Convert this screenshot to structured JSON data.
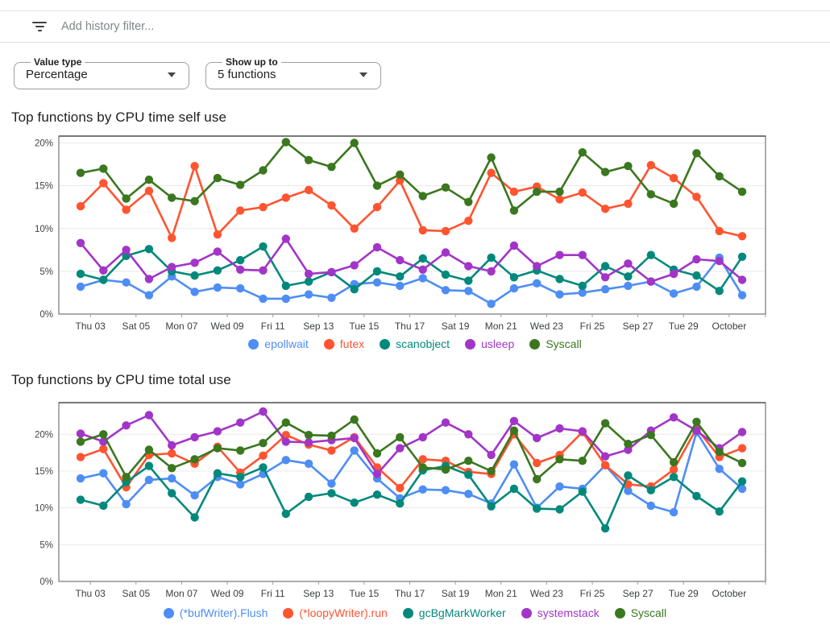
{
  "filter_bar": {
    "icon": "filter-list-icon",
    "placeholder": "Add history filter..."
  },
  "controls": {
    "value_type": {
      "label": "Value type",
      "value": "Percentage"
    },
    "show_up_to": {
      "label": "Show up to",
      "value": "5 functions"
    }
  },
  "palette": {
    "blue": "#4e8df5",
    "orange": "#ff5430",
    "teal": "#00897b",
    "purple": "#a235c8",
    "green": "#3a771e",
    "grid": "#e8e8e8",
    "axis": "#757575",
    "tick_label": "#3c4043",
    "y_label": "#424242"
  },
  "chart_data": [
    {
      "type": "line",
      "title": "Top functions by CPU time self use",
      "xlabel": "",
      "ylabel": "",
      "grid": true,
      "legend_position": "bottom",
      "ylim": [
        0,
        20.8
      ],
      "yticks": [
        {
          "v": 0,
          "label": "0%"
        },
        {
          "v": 5,
          "label": "5%"
        },
        {
          "v": 10,
          "label": "10%"
        },
        {
          "v": 15,
          "label": "15%"
        },
        {
          "v": 20,
          "label": "20%"
        }
      ],
      "x_tick_labels": [
        "Thu 03",
        "Sat 05",
        "Mon 07",
        "Wed 09",
        "Fri 11",
        "Sep 13",
        "Tue 15",
        "Thu 17",
        "Sat 19",
        "Mon 21",
        "Wed 23",
        "Fri 25",
        "Sep 27",
        "Tue 29",
        "October"
      ],
      "series": [
        {
          "name": "epollwait",
          "color": "#4e8df5",
          "values": [
            3.2,
            4.0,
            3.7,
            2.2,
            4.4,
            2.6,
            3.1,
            3.0,
            1.8,
            1.8,
            2.3,
            1.9,
            3.5,
            3.7,
            3.3,
            4.2,
            2.8,
            2.7,
            1.2,
            3.0,
            3.6,
            2.3,
            2.5,
            2.9,
            3.3,
            3.8,
            2.4,
            3.2,
            6.6,
            2.2
          ]
        },
        {
          "name": "futex",
          "color": "#ff5430",
          "values": [
            12.6,
            15.3,
            12.2,
            14.4,
            8.9,
            17.3,
            9.3,
            12.1,
            12.5,
            13.6,
            14.5,
            12.7,
            10.0,
            12.5,
            15.6,
            9.8,
            9.7,
            10.9,
            16.5,
            14.3,
            14.9,
            13.4,
            14.2,
            12.3,
            12.9,
            17.4,
            15.9,
            13.7,
            9.7,
            9.1
          ]
        },
        {
          "name": "scanobject",
          "color": "#00897b",
          "values": [
            4.7,
            4.0,
            6.8,
            7.6,
            5.0,
            4.5,
            5.1,
            6.3,
            7.9,
            3.3,
            3.8,
            4.9,
            2.9,
            5.0,
            4.4,
            6.5,
            4.6,
            3.9,
            6.6,
            4.3,
            5.1,
            4.1,
            3.3,
            5.6,
            4.4,
            6.9,
            5.2,
            4.5,
            2.7,
            6.7
          ]
        },
        {
          "name": "usleep",
          "color": "#a235c8",
          "values": [
            8.3,
            5.1,
            7.5,
            4.1,
            5.5,
            6.0,
            7.3,
            5.2,
            5.1,
            8.8,
            4.7,
            4.9,
            5.7,
            7.8,
            6.3,
            5.2,
            7.2,
            5.6,
            5.0,
            8.0,
            5.6,
            6.9,
            6.9,
            4.3,
            5.9,
            3.8,
            4.7,
            6.4,
            6.2,
            4.0
          ]
        },
        {
          "name": "Syscall",
          "color": "#3a771e",
          "values": [
            16.5,
            17.0,
            13.5,
            15.7,
            13.6,
            13.2,
            15.9,
            15.1,
            16.8,
            20.1,
            18.0,
            17.2,
            20.0,
            15.0,
            16.3,
            13.8,
            14.8,
            13.1,
            18.3,
            12.1,
            14.3,
            14.3,
            18.9,
            16.6,
            17.3,
            14.0,
            12.9,
            18.8,
            16.1,
            14.3
          ]
        }
      ]
    },
    {
      "type": "line",
      "title": "Top functions by CPU time total use",
      "xlabel": "",
      "ylabel": "",
      "grid": true,
      "legend_position": "bottom",
      "ylim": [
        0,
        24.3
      ],
      "yticks": [
        {
          "v": 0,
          "label": "0%"
        },
        {
          "v": 5,
          "label": "5%"
        },
        {
          "v": 10,
          "label": "10%"
        },
        {
          "v": 15,
          "label": "15%"
        },
        {
          "v": 20,
          "label": "20%"
        }
      ],
      "x_tick_labels": [
        "Thu 03",
        "Sat 05",
        "Mon 07",
        "Wed 09",
        "Fri 11",
        "Sep 13",
        "Tue 15",
        "Thu 17",
        "Sat 19",
        "Mon 21",
        "Wed 23",
        "Fri 25",
        "Sep 27",
        "Tue 29",
        "October"
      ],
      "series": [
        {
          "name": "(*bufWriter).Flush",
          "color": "#4e8df5",
          "values": [
            14.0,
            14.7,
            10.5,
            13.8,
            14.0,
            11.7,
            14.2,
            13.2,
            14.6,
            16.5,
            16.0,
            13.3,
            17.8,
            14.0,
            11.3,
            12.5,
            12.4,
            11.9,
            10.6,
            15.9,
            10.0,
            12.9,
            12.6,
            15.8,
            12.3,
            10.3,
            9.4,
            20.3,
            15.3,
            12.6
          ]
        },
        {
          "name": "(*loopyWriter).run",
          "color": "#ff5430",
          "values": [
            16.9,
            18.0,
            12.8,
            17.2,
            17.4,
            16.0,
            18.3,
            14.8,
            17.1,
            19.9,
            18.6,
            17.8,
            19.6,
            15.5,
            12.7,
            16.6,
            16.4,
            14.9,
            14.6,
            20.0,
            16.1,
            17.2,
            20.3,
            15.8,
            13.2,
            12.9,
            15.2,
            20.8,
            16.9,
            18.1
          ]
        },
        {
          "name": "gcBgMarkWorker",
          "color": "#00897b",
          "values": [
            11.1,
            10.3,
            13.5,
            15.7,
            12.0,
            8.7,
            14.7,
            14.2,
            15.5,
            9.2,
            11.5,
            12.0,
            10.7,
            11.8,
            10.6,
            15.1,
            15.7,
            14.5,
            10.2,
            12.6,
            9.9,
            9.8,
            12.2,
            7.2,
            14.4,
            12.4,
            14.2,
            11.6,
            9.5,
            13.6
          ]
        },
        {
          "name": "systemstack",
          "color": "#a235c8",
          "values": [
            20.1,
            19.0,
            21.2,
            22.6,
            18.5,
            19.6,
            20.4,
            21.6,
            23.1,
            19.0,
            18.9,
            19.2,
            19.5,
            14.6,
            18.1,
            19.6,
            21.6,
            20.0,
            17.2,
            21.8,
            19.5,
            20.8,
            20.4,
            17.0,
            17.9,
            20.5,
            22.3,
            20.5,
            18.1,
            20.3
          ]
        },
        {
          "name": "Syscall",
          "color": "#3a771e",
          "values": [
            19.0,
            20.0,
            14.2,
            17.9,
            15.4,
            16.6,
            18.1,
            17.8,
            18.8,
            21.6,
            19.9,
            19.8,
            22.0,
            17.4,
            19.6,
            15.5,
            15.2,
            16.4,
            15.0,
            20.5,
            13.9,
            16.6,
            16.4,
            21.5,
            18.7,
            19.9,
            16.2,
            21.7,
            17.6,
            16.1
          ]
        }
      ]
    }
  ]
}
